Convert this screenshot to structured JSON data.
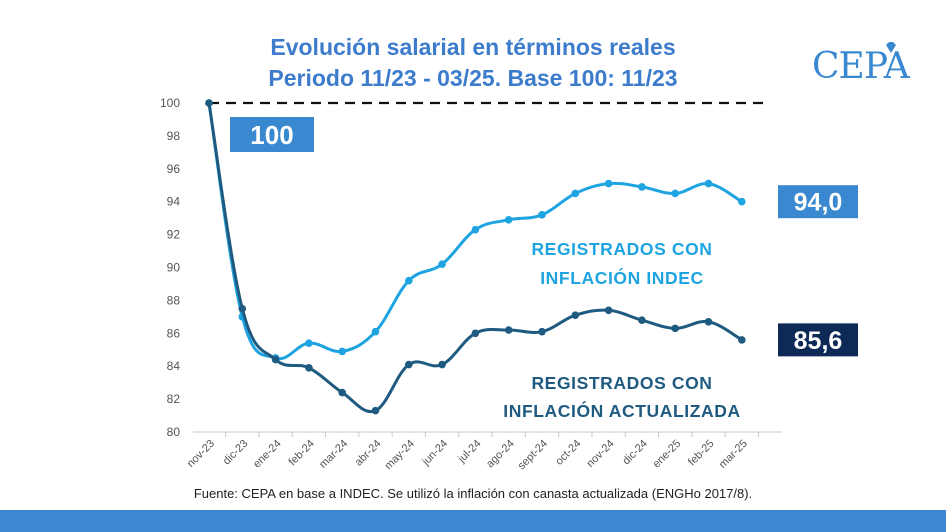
{
  "title_line1": "Evolución salarial en términos reales",
  "title_line2": "Periodo 11/23 - 03/25. Base 100: 11/23",
  "logo_text": "CEPA",
  "source": "Fuente: CEPA en base a INDEC. Se utilizó la inflación con canasta actualizada (ENGHo 2017/8).",
  "colors": {
    "title": "#3d7ccc",
    "light": "#1ea4e0",
    "dark": "#1f5a80",
    "light_label_bg": "#3a89d0",
    "dark_label_bg": "#0d2a57",
    "base_label_bg": "#3a89d0"
  },
  "chart_data": {
    "type": "line",
    "categories": [
      "nov-23",
      "dic-23",
      "ene-24",
      "feb-24",
      "mar-24",
      "abr-24",
      "may-24",
      "jun-24",
      "jul-24",
      "ago-24",
      "sept-24",
      "oct-24",
      "nov-24",
      "dic-24",
      "ene-25",
      "feb-25",
      "mar-25"
    ],
    "series": [
      {
        "name": "REGISTRADOS CON INFLACIÓN INDEC",
        "label_lines": [
          "REGISTRADOS CON",
          "INFLACIÓN INDEC"
        ],
        "color": "#1ea4e0",
        "values": [
          100,
          87.0,
          84.5,
          85.4,
          84.9,
          86.1,
          89.2,
          90.2,
          92.3,
          92.9,
          93.2,
          94.5,
          95.1,
          94.9,
          94.5,
          95.1,
          94.0
        ],
        "end_label": "94,0"
      },
      {
        "name": "REGISTRADOS CON INFLACIÓN ACTUALIZADA",
        "label_lines": [
          "REGISTRADOS CON",
          "INFLACIÓN ACTUALIZADA"
        ],
        "color": "#1f5a80",
        "values": [
          100,
          87.5,
          84.4,
          83.9,
          82.4,
          81.3,
          84.1,
          84.1,
          86.0,
          86.2,
          86.1,
          87.1,
          87.4,
          86.8,
          86.3,
          86.7,
          85.6
        ],
        "end_label": "85,6"
      }
    ],
    "base_line": 100,
    "base_label": "100",
    "ylim": [
      80,
      100
    ],
    "yticks": [
      80,
      82,
      84,
      86,
      88,
      90,
      92,
      94,
      96,
      98,
      100
    ],
    "grid": false,
    "legend": "inline-labels"
  }
}
